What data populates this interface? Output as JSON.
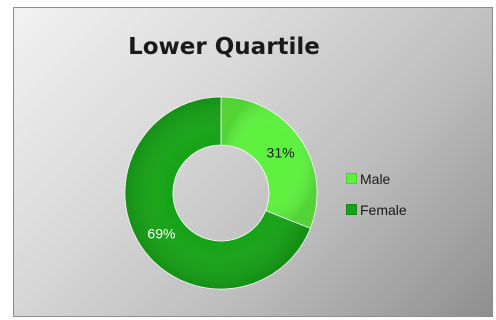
{
  "chart_data": {
    "type": "pie",
    "variant": "doughnut",
    "title": "Lower Quartile",
    "categories": [
      "Male",
      "Female"
    ],
    "values": [
      31,
      69
    ],
    "data_labels": [
      "31%",
      "69%"
    ],
    "colors": [
      "#5ef03f",
      "#17a317"
    ],
    "legend_position": "right"
  }
}
